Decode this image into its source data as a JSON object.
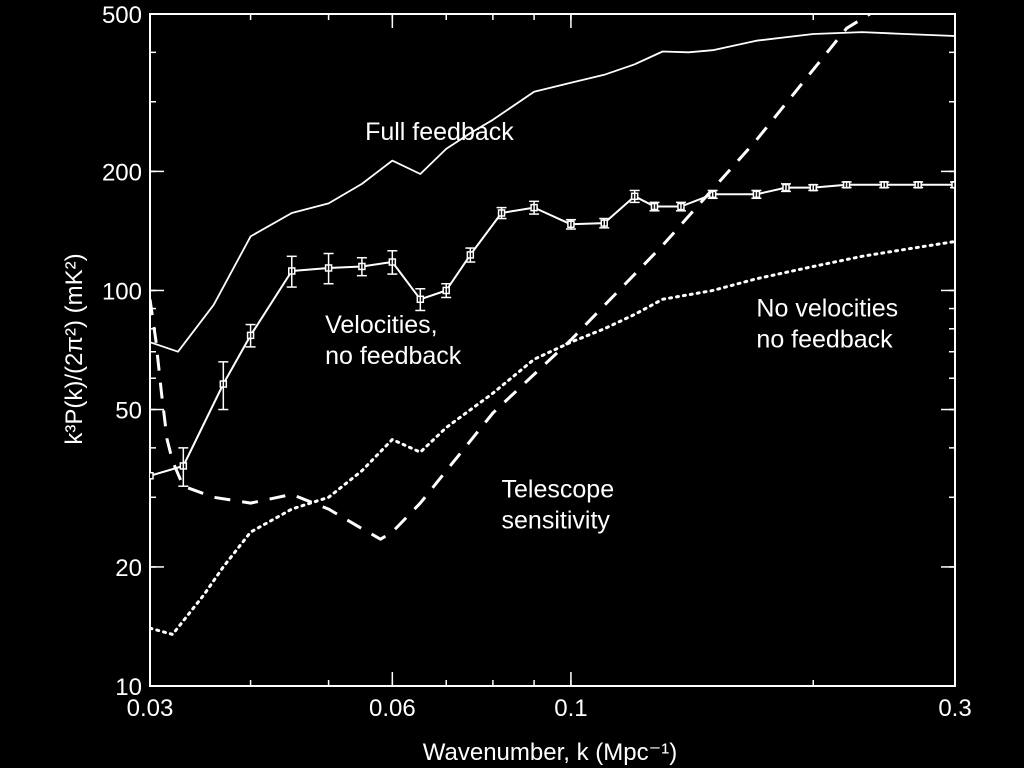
{
  "chart_data": {
    "type": "line",
    "title": "",
    "xlabel": "Wavenumber, k (Mpc⁻¹)",
    "ylabel": "k³P(k)/(2π²) (mK²)",
    "xscale": "log",
    "yscale": "log",
    "xlim": [
      0.03,
      0.3
    ],
    "ylim": [
      10,
      500
    ],
    "xticks": [
      0.03,
      0.06,
      0.1,
      0.3
    ],
    "xtick_labels": [
      "0.03",
      "0.06",
      "0.1",
      "0.3"
    ],
    "yticks": [
      10,
      20,
      50,
      100,
      200,
      500
    ],
    "ytick_labels": [
      "10",
      "20",
      "50",
      "100",
      "200",
      "500"
    ],
    "grid": false,
    "legend": "none",
    "colors": {
      "background": "#000000",
      "foreground": "#ffffff"
    },
    "series": [
      {
        "name": "Full feedback",
        "style": "solid",
        "x": [
          0.03,
          0.0325,
          0.036,
          0.04,
          0.045,
          0.05,
          0.055,
          0.06,
          0.065,
          0.07,
          0.075,
          0.08,
          0.09,
          0.1,
          0.11,
          0.12,
          0.13,
          0.14,
          0.15,
          0.17,
          0.2,
          0.23,
          0.26,
          0.3
        ],
        "y": [
          74,
          70,
          92,
          137,
          157,
          166,
          186,
          213,
          197,
          228,
          250,
          270,
          318,
          335,
          351,
          373,
          402,
          400,
          405,
          428,
          445,
          450,
          445,
          440
        ]
      },
      {
        "name": "Velocities, no feedback",
        "style": "solid-errorbars",
        "x": [
          0.03,
          0.033,
          0.037,
          0.04,
          0.045,
          0.05,
          0.055,
          0.06,
          0.065,
          0.07,
          0.075,
          0.082,
          0.09,
          0.1,
          0.11,
          0.12,
          0.127,
          0.137,
          0.15,
          0.17,
          0.185,
          0.2,
          0.22,
          0.245,
          0.27,
          0.3
        ],
        "y": [
          34,
          36,
          58,
          77,
          112,
          114,
          115,
          118,
          95,
          100,
          123,
          157,
          162,
          147,
          148,
          173,
          163,
          163,
          175,
          175,
          182,
          182,
          185,
          185,
          185,
          185
        ],
        "yerr": [
          0,
          4,
          8,
          5,
          10,
          10,
          6,
          8,
          6,
          4,
          5,
          5,
          6,
          4,
          4,
          6,
          4,
          4,
          4,
          4,
          4,
          3,
          3,
          3,
          3,
          3
        ]
      },
      {
        "name": "No velocities no feedback",
        "style": "dotted",
        "x": [
          0.03,
          0.032,
          0.035,
          0.037,
          0.04,
          0.045,
          0.05,
          0.055,
          0.06,
          0.065,
          0.07,
          0.08,
          0.09,
          0.1,
          0.11,
          0.12,
          0.13,
          0.15,
          0.17,
          0.2,
          0.23,
          0.26,
          0.3
        ],
        "y": [
          14,
          13.5,
          17,
          20,
          24.5,
          28,
          30,
          35,
          42,
          39,
          45,
          55,
          67,
          74,
          80,
          87,
          95,
          100,
          107,
          115,
          122,
          127,
          133
        ]
      },
      {
        "name": "Telescope sensitivity",
        "style": "dashed",
        "x": [
          0.03,
          0.0305,
          0.031,
          0.0315,
          0.032,
          0.033,
          0.036,
          0.04,
          0.045,
          0.05,
          0.055,
          0.058,
          0.06,
          0.065,
          0.07,
          0.08,
          0.1,
          0.13,
          0.17,
          0.22,
          0.25
        ],
        "y": [
          95,
          75,
          55,
          42,
          37,
          32,
          30,
          29,
          30.5,
          28,
          25,
          23.5,
          24.5,
          29,
          35,
          49,
          75,
          130,
          240,
          460,
          540
        ]
      }
    ],
    "annotations": [
      {
        "id": "full",
        "lines": [
          "Full feedback"
        ],
        "anchor": "start",
        "at": [
          0.0555,
          240
        ]
      },
      {
        "id": "vel",
        "lines": [
          "Velocities,",
          "no feedback"
        ],
        "anchor": "start",
        "at": [
          0.0495,
          78
        ]
      },
      {
        "id": "novel",
        "lines": [
          "No velocities",
          "no feedback"
        ],
        "anchor": "start",
        "at": [
          0.17,
          86
        ]
      },
      {
        "id": "tele",
        "lines": [
          "Telescope",
          "sensitivity"
        ],
        "anchor": "start",
        "at": [
          0.082,
          30
        ]
      }
    ]
  }
}
